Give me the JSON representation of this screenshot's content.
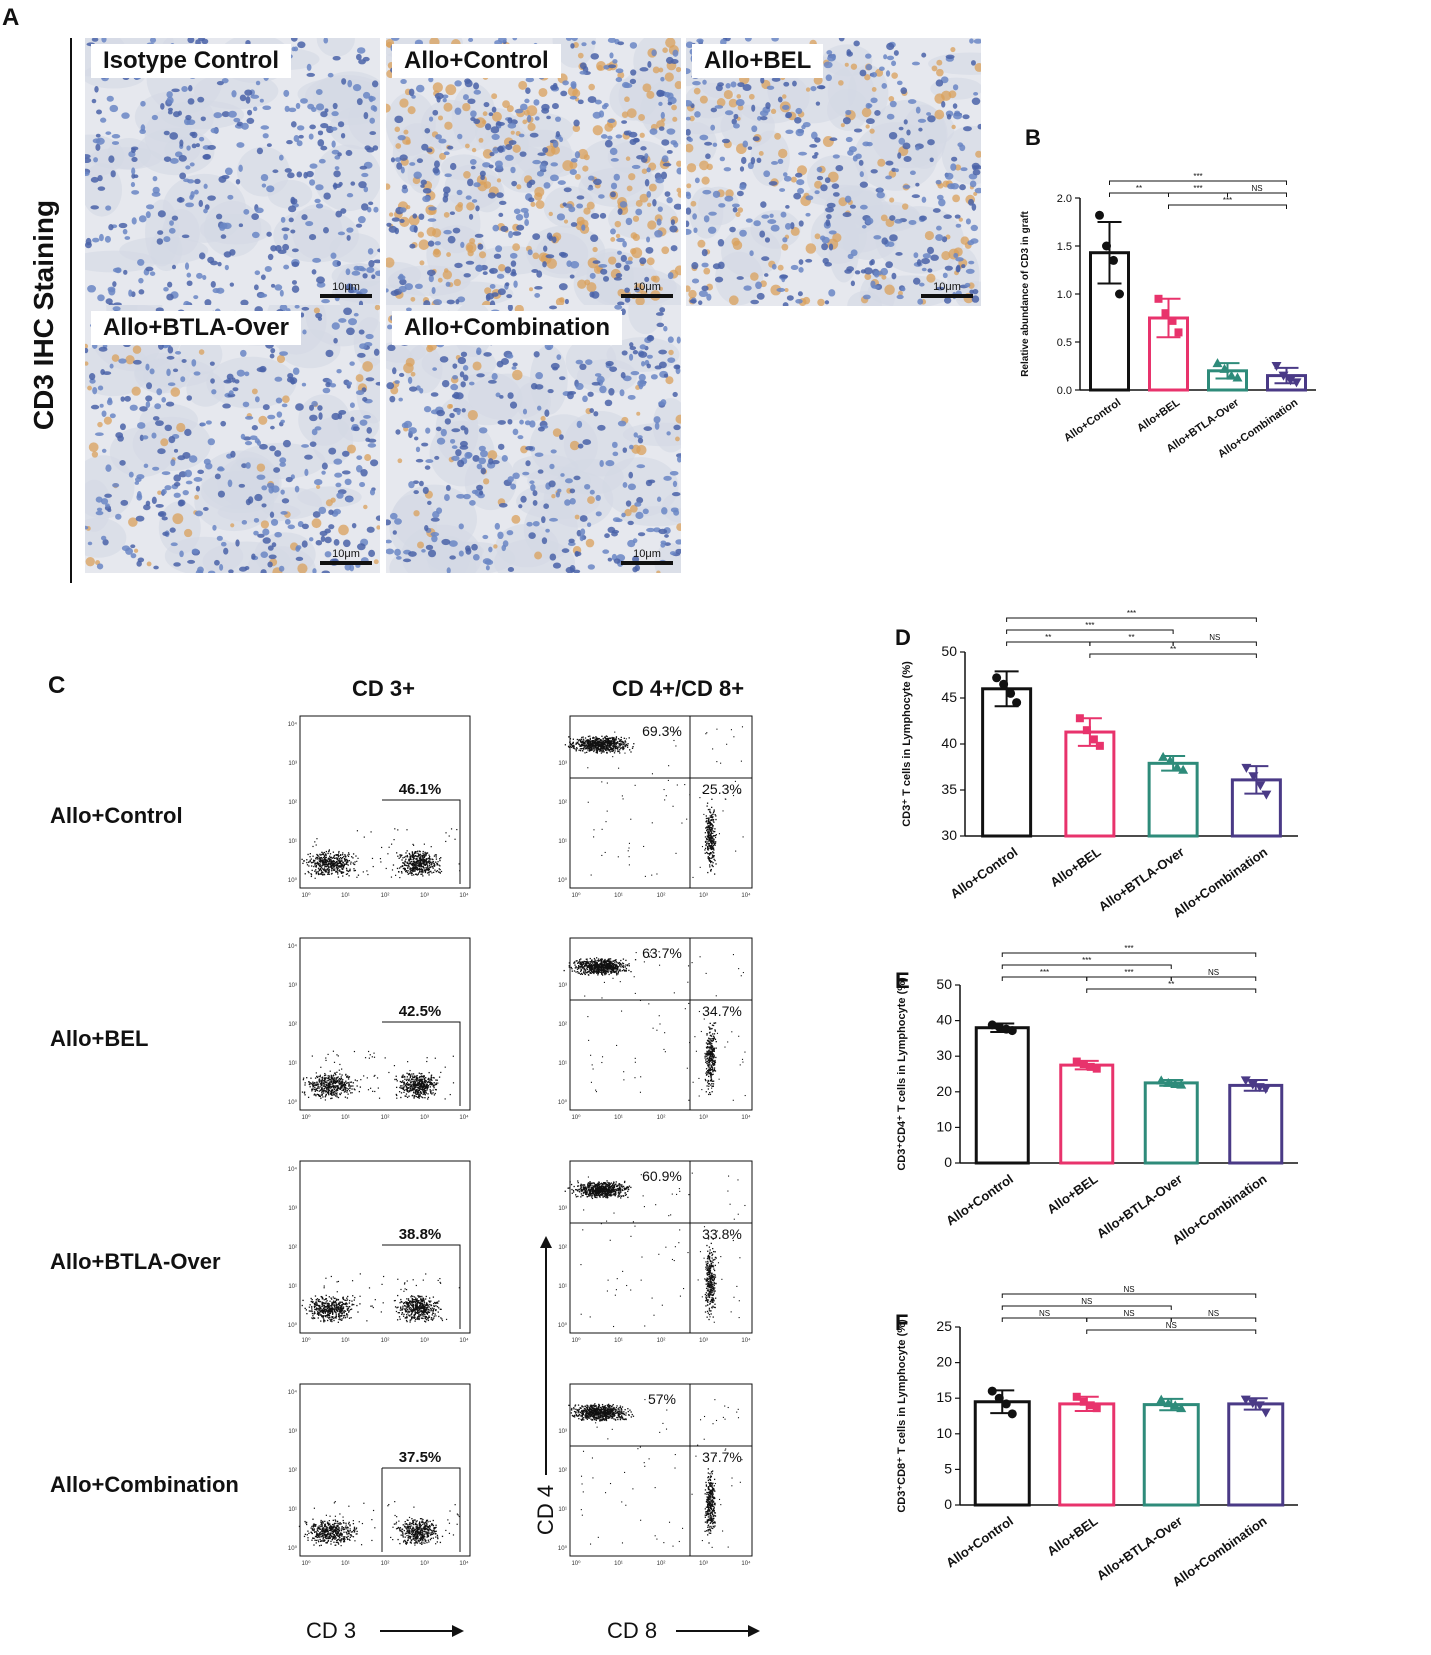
{
  "panel_a": {
    "letter": "A",
    "side_label": "CD3 IHC Staining",
    "images": [
      {
        "label": "Isotype Control",
        "scale": "10μm",
        "stain": "none"
      },
      {
        "label": "Allo+Control",
        "scale": "10μm",
        "stain": "high"
      },
      {
        "label": "Allo+BEL",
        "scale": "10μm",
        "stain": "medium"
      },
      {
        "label": "Allo+BTLA-Over",
        "scale": "10μm",
        "stain": "low"
      },
      {
        "label": "Allo+Combination",
        "scale": "10μm",
        "stain": "low"
      }
    ]
  },
  "panel_c": {
    "letter": "C",
    "col1_header": "CD 3+",
    "col2_header": "CD 4+/CD 8+",
    "x1_label": "CD 3",
    "x2_label": "CD 8",
    "y2_label": "CD 4",
    "rows": [
      {
        "label": "Allo+Control",
        "cd3": "46.1%",
        "cd4": "69.3%",
        "cd8": "25.3%"
      },
      {
        "label": "Allo+BEL",
        "cd3": "42.5%",
        "cd4": "63.7%",
        "cd8": "34.7%"
      },
      {
        "label": "Allo+BTLA-Over",
        "cd3": "38.8%",
        "cd4": "60.9%",
        "cd8": "33.8%"
      },
      {
        "label": "Allo+Combination",
        "cd3": "37.5%",
        "cd4": "57%",
        "cd8": "37.7%"
      }
    ]
  },
  "colors": {
    "Allo+Control": "#111111",
    "Allo+BEL": "#e8336c",
    "Allo+BTLA-Over": "#2e8b7a",
    "Allo+Combination": "#4a3a86"
  },
  "chart_data": [
    {
      "panel": "B",
      "type": "bar",
      "categories": [
        "Allo+Control",
        "Allo+BEL",
        "Allo+BTLA-Over",
        "Allo+Combination"
      ],
      "values": [
        1.43,
        0.75,
        0.2,
        0.15
      ],
      "errors": [
        0.32,
        0.2,
        0.08,
        0.08
      ],
      "points": [
        [
          1.82,
          1.5,
          1.35,
          1.0
        ],
        [
          0.95,
          0.8,
          0.72,
          0.6
        ],
        [
          0.28,
          0.22,
          0.15,
          0.13
        ],
        [
          0.25,
          0.15,
          0.1,
          0.08
        ]
      ],
      "ylabel": "Relative abundance of CD3 in graft",
      "ylim": [
        0,
        2.0
      ],
      "yticks": [
        0.0,
        0.5,
        1.0,
        1.5,
        2.0
      ],
      "ytick_labels": [
        "0.0",
        "0.5",
        "1.0",
        "1.5",
        "2.0"
      ],
      "significance": [
        {
          "from": 0,
          "to": 1,
          "label": "**",
          "level": 1
        },
        {
          "from": 1,
          "to": 2,
          "label": "***",
          "level": 1
        },
        {
          "from": 2,
          "to": 3,
          "label": "NS",
          "level": 1
        },
        {
          "from": 0,
          "to": 3,
          "label": "***",
          "level": 2
        },
        {
          "from": 1,
          "to": 3,
          "label": "***",
          "level": 0
        }
      ]
    },
    {
      "panel": "D",
      "type": "bar",
      "categories": [
        "Allo+Control",
        "Allo+BEL",
        "Allo+BTLA-Over",
        "Allo+Combination"
      ],
      "values": [
        46.0,
        41.3,
        37.9,
        36.1
      ],
      "errors": [
        1.9,
        1.5,
        0.8,
        1.5
      ],
      "points": [
        [
          47.2,
          46.5,
          45.5,
          44.5
        ],
        [
          42.8,
          41.5,
          40.5,
          39.8
        ],
        [
          38.6,
          38.2,
          37.5,
          37.2
        ],
        [
          37.4,
          36.5,
          35.5,
          34.5
        ]
      ],
      "ylabel": "CD3⁺ T cells in Lymphocyte (%)",
      "ylim": [
        30,
        50
      ],
      "yticks": [
        30,
        35,
        40,
        45,
        50
      ],
      "ytick_labels": [
        "30",
        "35",
        "40",
        "45",
        "50"
      ],
      "significance": [
        {
          "from": 0,
          "to": 1,
          "label": "**",
          "level": 1
        },
        {
          "from": 1,
          "to": 2,
          "label": "**",
          "level": 1
        },
        {
          "from": 2,
          "to": 3,
          "label": "NS",
          "level": 1
        },
        {
          "from": 0,
          "to": 2,
          "label": "***",
          "level": 2
        },
        {
          "from": 0,
          "to": 3,
          "label": "***",
          "level": 3
        },
        {
          "from": 1,
          "to": 3,
          "label": "**",
          "level": 0
        }
      ]
    },
    {
      "panel": "E",
      "type": "bar",
      "categories": [
        "Allo+Control",
        "Allo+BEL",
        "Allo+BTLA-Over",
        "Allo+Combination"
      ],
      "values": [
        38.0,
        27.5,
        22.5,
        21.8
      ],
      "errors": [
        1.2,
        1.2,
        0.8,
        1.5
      ],
      "points": [
        [
          38.8,
          38.2,
          37.6,
          37.2
        ],
        [
          28.5,
          27.8,
          27.0,
          26.5
        ],
        [
          23.2,
          22.5,
          22.2,
          22.0
        ],
        [
          23.2,
          22.0,
          21.3,
          20.8
        ]
      ],
      "ylabel": "CD3⁺CD4⁺ T cells in Lymphocyte (%)",
      "ylim": [
        0,
        50
      ],
      "yticks": [
        0,
        10,
        20,
        30,
        40,
        50
      ],
      "ytick_labels": [
        "0",
        "10",
        "20",
        "30",
        "40",
        "50"
      ],
      "significance": [
        {
          "from": 0,
          "to": 1,
          "label": "***",
          "level": 1
        },
        {
          "from": 1,
          "to": 2,
          "label": "***",
          "level": 1
        },
        {
          "from": 2,
          "to": 3,
          "label": "NS",
          "level": 1
        },
        {
          "from": 0,
          "to": 2,
          "label": "***",
          "level": 2
        },
        {
          "from": 0,
          "to": 3,
          "label": "***",
          "level": 3
        },
        {
          "from": 1,
          "to": 3,
          "label": "**",
          "level": 0
        }
      ]
    },
    {
      "panel": "F",
      "type": "bar",
      "categories": [
        "Allo+Control",
        "Allo+BEL",
        "Allo+BTLA-Over",
        "Allo+Combination"
      ],
      "values": [
        14.5,
        14.2,
        14.1,
        14.2
      ],
      "errors": [
        1.6,
        1.0,
        0.8,
        0.8
      ],
      "points": [
        [
          16.0,
          15.0,
          14.2,
          12.8
        ],
        [
          15.2,
          14.5,
          14.0,
          13.6
        ],
        [
          14.8,
          14.3,
          14.0,
          13.6
        ],
        [
          14.8,
          14.3,
          14.0,
          13.0
        ]
      ],
      "ylabel": "CD3⁺CD8⁺ T cells in Lymphocyte (%)",
      "ylim": [
        0,
        25
      ],
      "yticks": [
        0,
        5,
        10,
        15,
        20,
        25
      ],
      "ytick_labels": [
        "0",
        "5",
        "10",
        "15",
        "20",
        "25"
      ],
      "significance": [
        {
          "from": 0,
          "to": 1,
          "label": "NS",
          "level": 1
        },
        {
          "from": 1,
          "to": 2,
          "label": "NS",
          "level": 1
        },
        {
          "from": 2,
          "to": 3,
          "label": "NS",
          "level": 1
        },
        {
          "from": 0,
          "to": 2,
          "label": "NS",
          "level": 2
        },
        {
          "from": 0,
          "to": 3,
          "label": "NS",
          "level": 3
        },
        {
          "from": 1,
          "to": 3,
          "label": "NS",
          "level": 0
        }
      ]
    }
  ]
}
